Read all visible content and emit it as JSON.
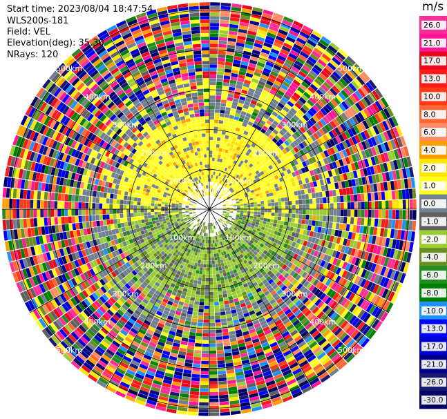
{
  "header": {
    "start_time": "Start time: 2023/08/04 18:47:54",
    "instrument": "WLS200s-181",
    "field": "Field: VEL",
    "elevation": "Elevation(deg): 35.30",
    "nrays": "NRays: 120"
  },
  "chart_data": {
    "type": "heatmap",
    "projection": "polar-ppi",
    "field": "VEL",
    "nrays": 120,
    "range_rings": [
      {
        "label": "100km",
        "range": 100
      },
      {
        "label": "200km",
        "range": 200
      },
      {
        "label": "300km",
        "range": 300
      },
      {
        "label": "400km",
        "range": 400
      },
      {
        "label": "500km",
        "range": 500
      }
    ],
    "max_range": 520,
    "colorbar": {
      "unit": "m/s",
      "ticks": [
        "26.0",
        "21.0",
        "17.0",
        "13.0",
        "10.0",
        "8.0",
        "6.0",
        "4.0",
        "2.0",
        "1.0",
        "0.0",
        "-1.0",
        "-2.0",
        "-4.0",
        "-6.0",
        "-8.0",
        "-10.0",
        "-13.0",
        "-17.0",
        "-21.0",
        "-26.0",
        "-30.0"
      ],
      "colors": [
        "#ff2d97",
        "#ff1493",
        "#e8091c",
        "#ff1a1a",
        "#ff3a17",
        "#ff6633",
        "#ff8a64",
        "#ffa000",
        "#ffe600",
        "#ffff20",
        "#708090",
        "#606060",
        "#9acd32",
        "#6b8e23",
        "#228b22",
        "#008000",
        "#1e90ff",
        "#0000ff",
        "#0000cd",
        "#00008b",
        "#191970",
        "#000060"
      ]
    }
  }
}
